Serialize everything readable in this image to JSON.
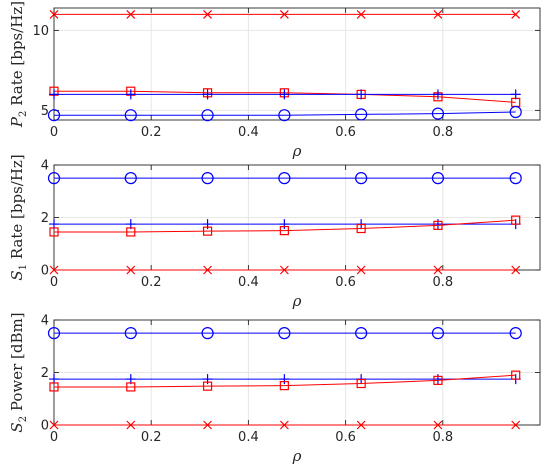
{
  "chart_data": [
    {
      "type": "line",
      "ylabel": "P_2 Rate [bps/Hz]",
      "ylabel_parts": {
        "sym": "P",
        "sub": "2",
        "rest": " Rate [bps/Hz]"
      },
      "xlabel": "ρ",
      "xlim": [
        0,
        1
      ],
      "ylim": [
        4.4,
        11.4
      ],
      "xticks": [
        0,
        0.2,
        0.4,
        0.6,
        0.8
      ],
      "xtick_labels": [
        "0",
        "0.2",
        "0.4",
        "0.6",
        "0.8"
      ],
      "yticks": [
        5,
        10
      ],
      "ytick_labels": [
        "5",
        "10"
      ],
      "grid": true,
      "x": [
        0,
        0.158,
        0.316,
        0.474,
        0.632,
        0.79,
        0.95
      ],
      "series": [
        {
          "marker": "x",
          "color": "#ff0000",
          "values": [
            11,
            11,
            11,
            11,
            11,
            11,
            11
          ]
        },
        {
          "marker": "square",
          "color": "#ff0000",
          "values": [
            6.2,
            6.2,
            6.1,
            6.1,
            6.0,
            5.85,
            5.5
          ]
        },
        {
          "marker": "plus",
          "color": "#0000ff",
          "values": [
            6.0,
            6.0,
            6.0,
            6.0,
            6.0,
            6.0,
            6.0
          ]
        },
        {
          "marker": "circle",
          "color": "#0000ff",
          "values": [
            4.7,
            4.7,
            4.7,
            4.7,
            4.75,
            4.8,
            4.9
          ]
        }
      ]
    },
    {
      "type": "line",
      "ylabel": "S_1 Rate [bps/Hz]",
      "ylabel_parts": {
        "sym": "S",
        "sub": "1",
        "rest": " Rate [bps/Hz]"
      },
      "xlabel": "ρ",
      "xlim": [
        0,
        1
      ],
      "ylim": [
        0,
        4
      ],
      "xticks": [
        0,
        0.2,
        0.4,
        0.6,
        0.8
      ],
      "xtick_labels": [
        "0",
        "0.2",
        "0.4",
        "0.6",
        "0.8"
      ],
      "yticks": [
        0,
        2,
        4
      ],
      "ytick_labels": [
        "0",
        "2",
        "4"
      ],
      "grid": true,
      "x": [
        0,
        0.158,
        0.316,
        0.474,
        0.632,
        0.79,
        0.95
      ],
      "series": [
        {
          "marker": "circle",
          "color": "#0000ff",
          "values": [
            3.5,
            3.5,
            3.5,
            3.5,
            3.5,
            3.5,
            3.5
          ]
        },
        {
          "marker": "plus",
          "color": "#0000ff",
          "values": [
            1.75,
            1.75,
            1.75,
            1.75,
            1.75,
            1.75,
            1.75
          ]
        },
        {
          "marker": "square",
          "color": "#ff0000",
          "values": [
            1.45,
            1.45,
            1.48,
            1.5,
            1.58,
            1.7,
            1.9
          ]
        },
        {
          "marker": "x",
          "color": "#ff0000",
          "values": [
            0,
            0,
            0,
            0,
            0,
            0,
            0
          ]
        }
      ]
    },
    {
      "type": "line",
      "ylabel": "S_2 Power [dBm]",
      "ylabel_parts": {
        "sym": "S",
        "sub": "2",
        "rest": " Power [dBm]"
      },
      "xlabel": "ρ",
      "xlim": [
        0,
        1
      ],
      "ylim": [
        0,
        4
      ],
      "xticks": [
        0,
        0.2,
        0.4,
        0.6,
        0.8
      ],
      "xtick_labels": [
        "0",
        "0.2",
        "0.4",
        "0.6",
        "0.8"
      ],
      "yticks": [
        0,
        2,
        4
      ],
      "ytick_labels": [
        "0",
        "2",
        "4"
      ],
      "grid": true,
      "x": [
        0,
        0.158,
        0.316,
        0.474,
        0.632,
        0.79,
        0.95
      ],
      "series": [
        {
          "marker": "circle",
          "color": "#0000ff",
          "values": [
            3.5,
            3.5,
            3.5,
            3.5,
            3.5,
            3.5,
            3.5
          ]
        },
        {
          "marker": "plus",
          "color": "#0000ff",
          "values": [
            1.75,
            1.75,
            1.75,
            1.75,
            1.75,
            1.75,
            1.75
          ]
        },
        {
          "marker": "square",
          "color": "#ff0000",
          "values": [
            1.45,
            1.45,
            1.48,
            1.5,
            1.58,
            1.7,
            1.9
          ]
        },
        {
          "marker": "x",
          "color": "#ff0000",
          "values": [
            0,
            0,
            0,
            0,
            0,
            0,
            0
          ]
        }
      ]
    }
  ]
}
